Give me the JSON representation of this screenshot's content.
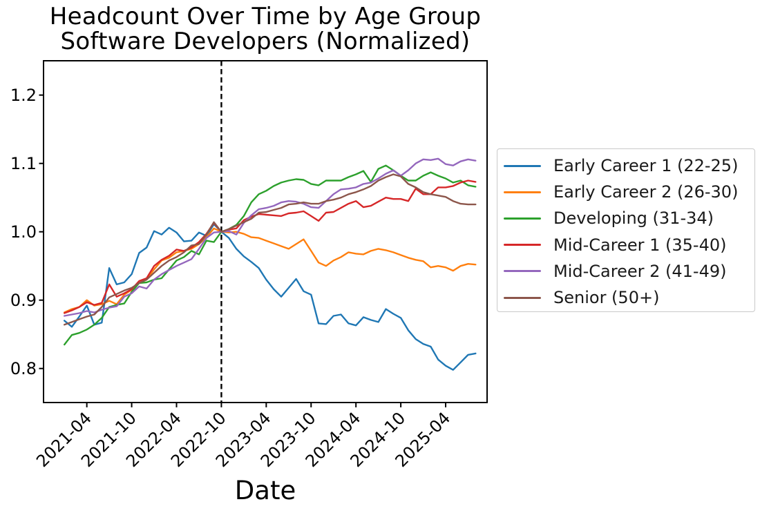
{
  "figure": {
    "title_line1": "Headcount Over Time by Age Group",
    "title_line2": "Software Developers (Normalized)"
  },
  "chart_data": {
    "type": "line",
    "title": "Headcount Over Time by Age Group",
    "subtitle": "Software Developers (Normalized)",
    "xlabel": "Date",
    "ylabel": "",
    "grid": false,
    "legend_position": "outside-right",
    "ylim": [
      0.75,
      1.25
    ],
    "y_ticks": [
      0.8,
      0.9,
      1.0,
      1.1,
      1.2
    ],
    "y_tick_labels": [
      "0.8",
      "0.9",
      "1.0",
      "1.1",
      "1.2"
    ],
    "x_tick_labels": [
      "2021-04",
      "2021-10",
      "2022-04",
      "2022-10",
      "2023-04",
      "2023-10",
      "2024-04",
      "2024-10",
      "2025-04"
    ],
    "x_tick_indices": [
      3,
      9,
      15,
      21,
      27,
      33,
      39,
      45,
      51
    ],
    "vline": {
      "x": "2022-10",
      "index": 21,
      "style": "dashed",
      "color": "#000000"
    },
    "x": [
      "2021-01",
      "2021-02",
      "2021-03",
      "2021-04",
      "2021-05",
      "2021-06",
      "2021-07",
      "2021-08",
      "2021-09",
      "2021-10",
      "2021-11",
      "2021-12",
      "2022-01",
      "2022-02",
      "2022-03",
      "2022-04",
      "2022-05",
      "2022-06",
      "2022-07",
      "2022-08",
      "2022-09",
      "2022-10",
      "2022-11",
      "2022-12",
      "2023-01",
      "2023-02",
      "2023-03",
      "2023-04",
      "2023-05",
      "2023-06",
      "2023-07",
      "2023-08",
      "2023-09",
      "2023-10",
      "2023-11",
      "2023-12",
      "2024-01",
      "2024-02",
      "2024-03",
      "2024-04",
      "2024-05",
      "2024-06",
      "2024-07",
      "2024-08",
      "2024-09",
      "2024-10",
      "2024-11",
      "2024-12",
      "2025-01",
      "2025-02",
      "2025-03",
      "2025-04",
      "2025-05",
      "2025-06",
      "2025-07",
      "2025-08"
    ],
    "series": [
      {
        "name": "Early Career 1 (22-25)",
        "color": "#1f77b4",
        "values": [
          0.87,
          0.861,
          0.876,
          0.892,
          0.864,
          0.867,
          0.947,
          0.923,
          0.926,
          0.938,
          0.969,
          0.977,
          1.001,
          0.996,
          1.006,
          0.999,
          0.986,
          0.987,
          0.999,
          0.994,
          1.011,
          1.0,
          0.991,
          0.975,
          0.964,
          0.956,
          0.947,
          0.93,
          0.916,
          0.905,
          0.918,
          0.931,
          0.913,
          0.908,
          0.866,
          0.865,
          0.877,
          0.879,
          0.866,
          0.863,
          0.875,
          0.871,
          0.868,
          0.887,
          0.88,
          0.874,
          0.856,
          0.843,
          0.836,
          0.832,
          0.813,
          0.804,
          0.798,
          0.809,
          0.82,
          0.822
        ]
      },
      {
        "name": "Early Career 2 (26-30)",
        "color": "#ff7f0e",
        "values": [
          0.882,
          0.887,
          0.89,
          0.9,
          0.892,
          0.894,
          0.899,
          0.894,
          0.908,
          0.915,
          0.925,
          0.93,
          0.945,
          0.958,
          0.962,
          0.97,
          0.972,
          0.975,
          0.982,
          0.992,
          1.005,
          1.0,
          0.999,
          1.0,
          0.997,
          0.992,
          0.991,
          0.987,
          0.983,
          0.979,
          0.975,
          0.982,
          0.989,
          0.972,
          0.955,
          0.95,
          0.958,
          0.963,
          0.97,
          0.968,
          0.967,
          0.972,
          0.975,
          0.973,
          0.97,
          0.966,
          0.962,
          0.959,
          0.957,
          0.948,
          0.95,
          0.948,
          0.943,
          0.95,
          0.953,
          0.952
        ]
      },
      {
        "name": "Developing (31-34)",
        "color": "#2ca02c",
        "values": [
          0.835,
          0.849,
          0.852,
          0.857,
          0.864,
          0.874,
          0.89,
          0.893,
          0.895,
          0.912,
          0.925,
          0.926,
          0.93,
          0.932,
          0.945,
          0.958,
          0.963,
          0.972,
          0.967,
          0.987,
          0.985,
          1.0,
          1.004,
          1.01,
          1.023,
          1.043,
          1.055,
          1.06,
          1.067,
          1.072,
          1.075,
          1.077,
          1.076,
          1.07,
          1.068,
          1.075,
          1.075,
          1.075,
          1.08,
          1.084,
          1.089,
          1.073,
          1.092,
          1.097,
          1.09,
          1.082,
          1.075,
          1.075,
          1.082,
          1.087,
          1.082,
          1.078,
          1.072,
          1.075,
          1.068,
          1.066
        ]
      },
      {
        "name": "Mid-Career 1 (35-40)",
        "color": "#d62728",
        "values": [
          0.881,
          0.885,
          0.89,
          0.897,
          0.893,
          0.896,
          0.923,
          0.905,
          0.91,
          0.916,
          0.928,
          0.932,
          0.95,
          0.959,
          0.965,
          0.974,
          0.972,
          0.977,
          0.985,
          0.997,
          1.013,
          1.0,
          1.003,
          1.005,
          1.017,
          1.022,
          1.026,
          1.025,
          1.024,
          1.023,
          1.027,
          1.028,
          1.03,
          1.023,
          1.016,
          1.028,
          1.029,
          1.035,
          1.041,
          1.045,
          1.036,
          1.038,
          1.044,
          1.05,
          1.048,
          1.048,
          1.045,
          1.063,
          1.055,
          1.055,
          1.065,
          1.065,
          1.067,
          1.072,
          1.075,
          1.073
        ]
      },
      {
        "name": "Mid-Career 2 (41-49)",
        "color": "#9467bd",
        "values": [
          0.877,
          0.879,
          0.881,
          0.884,
          0.882,
          0.886,
          0.889,
          0.891,
          0.905,
          0.91,
          0.92,
          0.917,
          0.93,
          0.938,
          0.944,
          0.95,
          0.955,
          0.96,
          0.975,
          0.991,
          0.999,
          1.0,
          1.001,
          0.996,
          1.013,
          1.024,
          1.033,
          1.035,
          1.038,
          1.043,
          1.045,
          1.044,
          1.041,
          1.036,
          1.035,
          1.045,
          1.055,
          1.062,
          1.063,
          1.065,
          1.07,
          1.072,
          1.078,
          1.085,
          1.09,
          1.082,
          1.09,
          1.1,
          1.106,
          1.105,
          1.107,
          1.099,
          1.097,
          1.103,
          1.106,
          1.104
        ]
      },
      {
        "name": "Senior (50+)",
        "color": "#8c564b",
        "values": [
          0.864,
          0.868,
          0.872,
          0.876,
          0.879,
          0.89,
          0.904,
          0.909,
          0.914,
          0.918,
          0.925,
          0.93,
          0.94,
          0.95,
          0.958,
          0.963,
          0.97,
          0.98,
          0.982,
          0.996,
          1.014,
          1.0,
          1.004,
          1.009,
          1.014,
          1.019,
          1.028,
          1.029,
          1.032,
          1.035,
          1.04,
          1.041,
          1.043,
          1.041,
          1.041,
          1.045,
          1.047,
          1.05,
          1.055,
          1.058,
          1.062,
          1.067,
          1.075,
          1.08,
          1.084,
          1.081,
          1.07,
          1.065,
          1.058,
          1.055,
          1.053,
          1.051,
          1.045,
          1.041,
          1.04,
          1.04
        ]
      }
    ]
  }
}
